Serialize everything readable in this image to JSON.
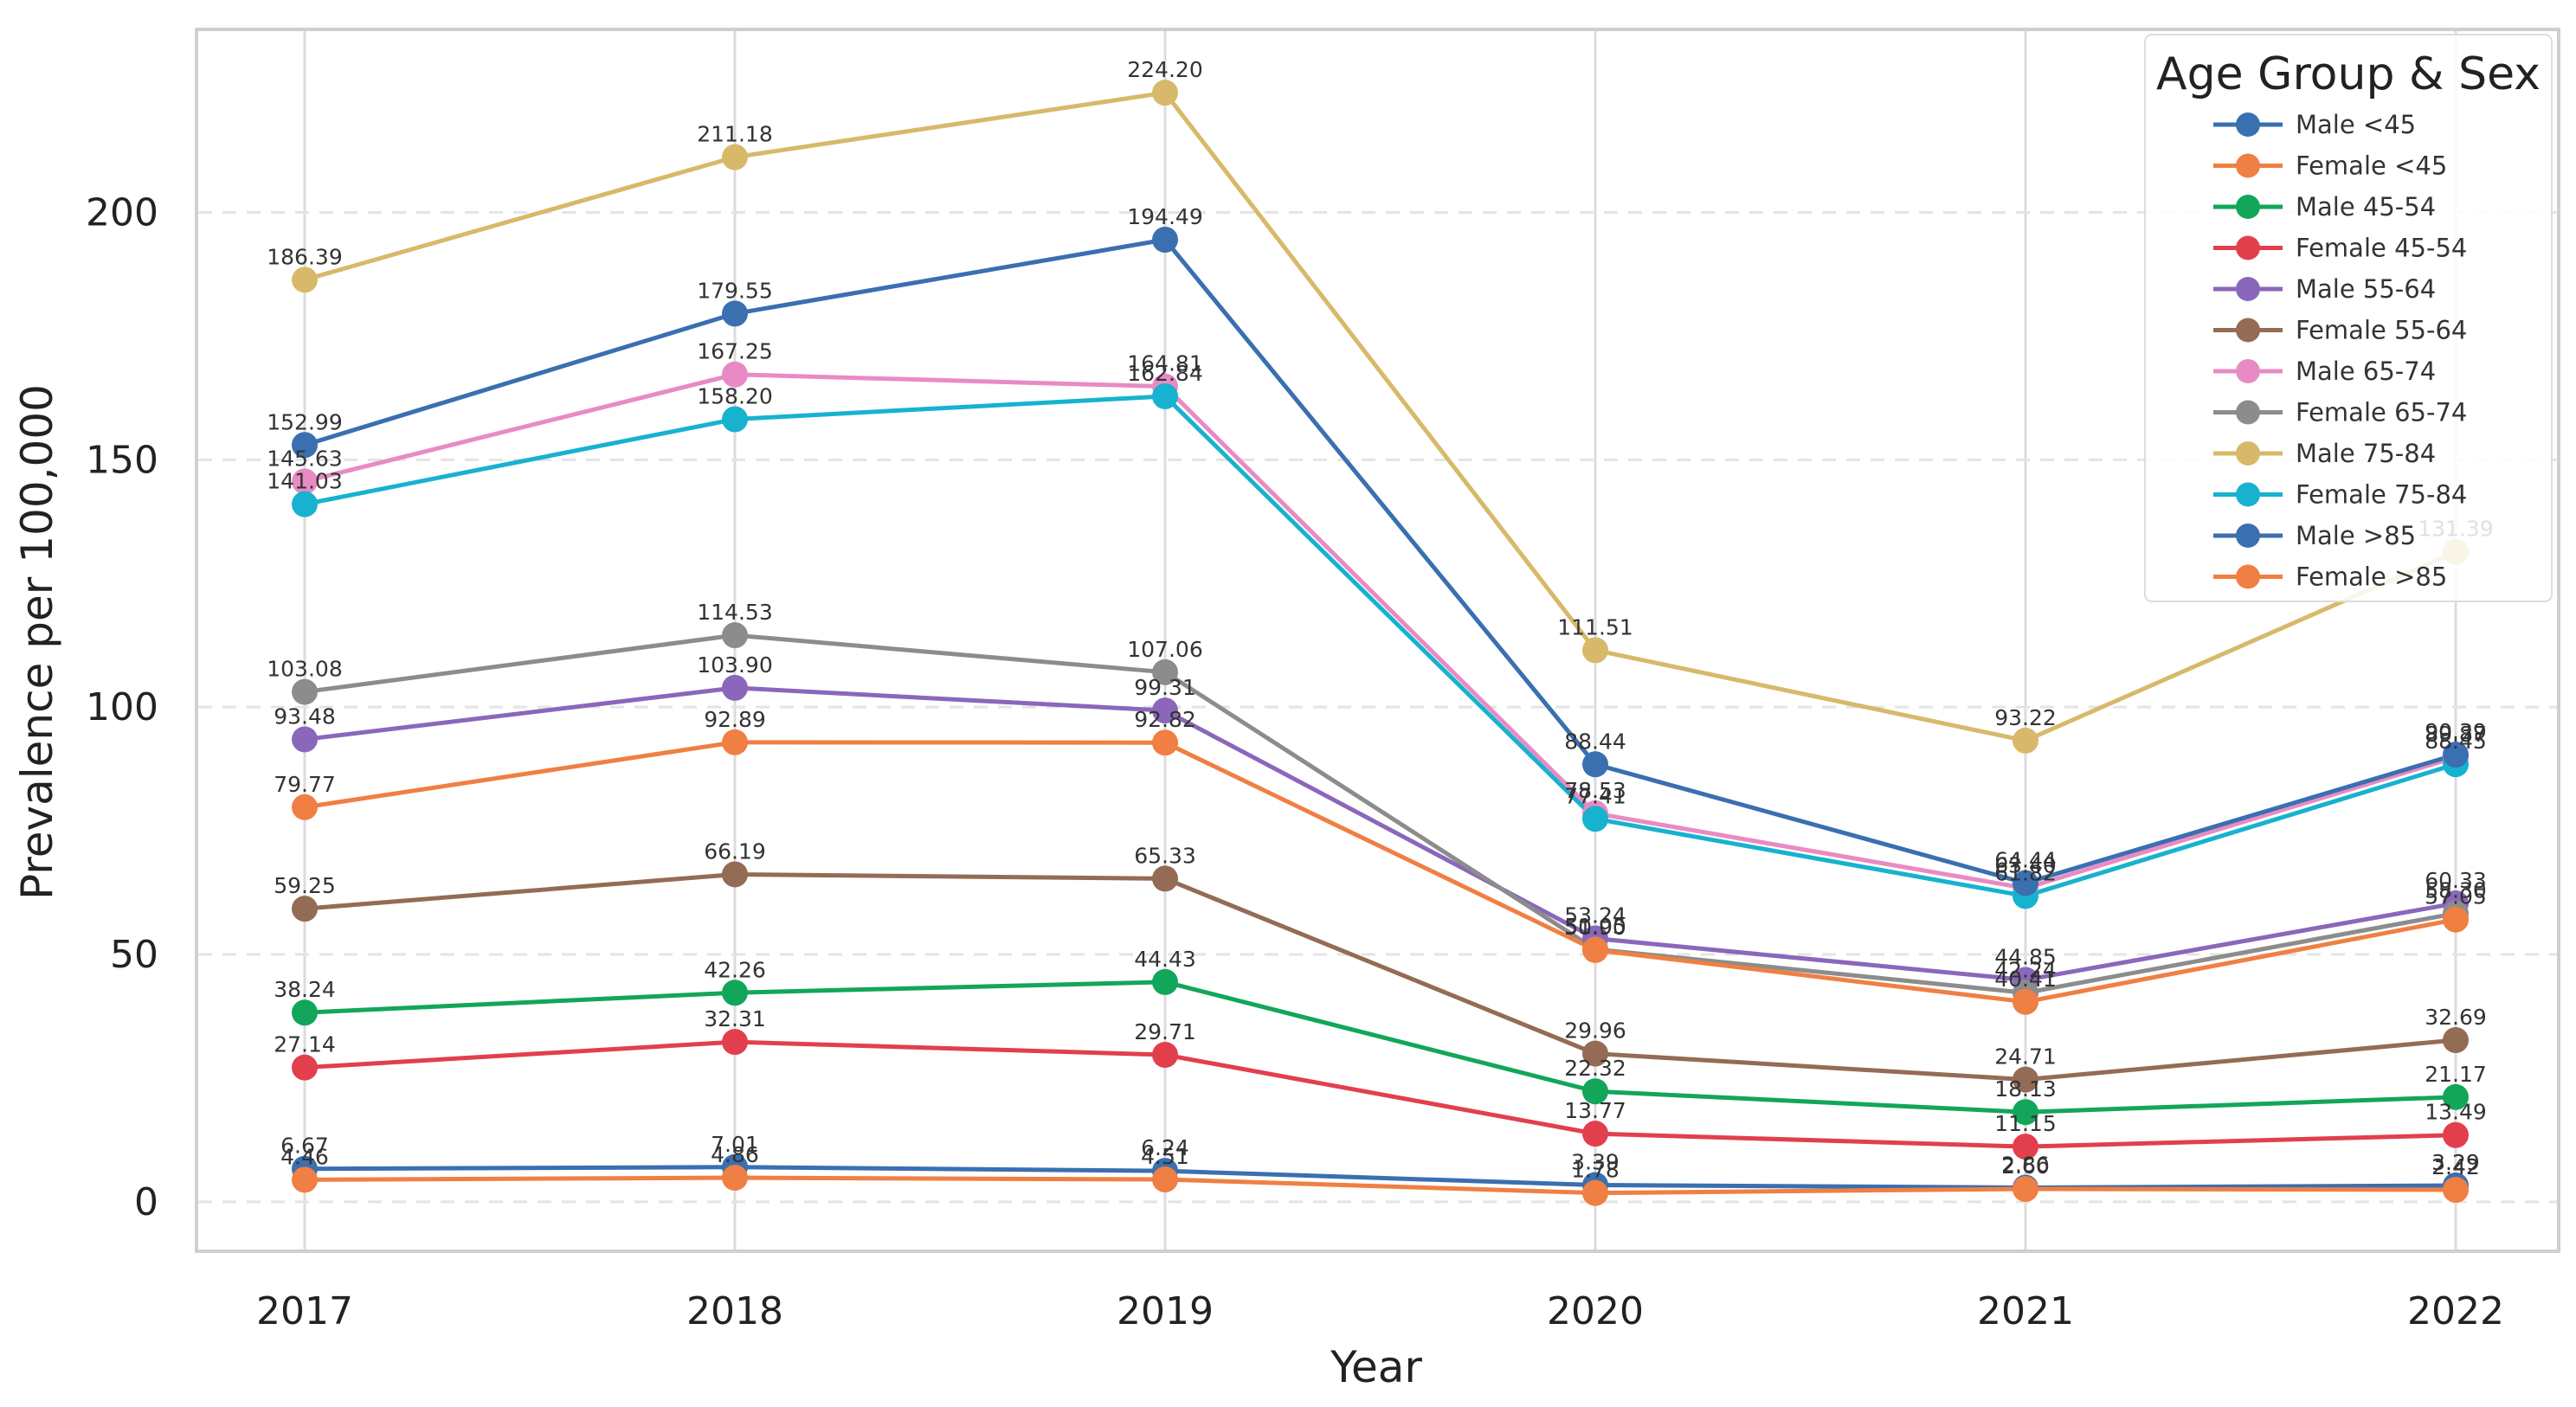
{
  "chart_data": {
    "type": "line",
    "title": "",
    "xlabel": "Year",
    "ylabel": "Prevalence per 100,000",
    "x": [
      "2017",
      "2018",
      "2019",
      "2020",
      "2021",
      "2022"
    ],
    "yticks": [
      "0",
      "50",
      "100",
      "150",
      "200"
    ],
    "ylim": [
      -10,
      237
    ],
    "grid": true,
    "legend": {
      "title": "Age Group & Sex",
      "position": "top-right"
    },
    "series": [
      {
        "name": "Male <45",
        "color": "#3a6fb0",
        "values": [
          6.67,
          7.01,
          6.24,
          3.39,
          2.86,
          3.29
        ],
        "labels": [
          "6.67",
          "7.01",
          "6.24",
          "3.39",
          "2.86",
          "3.29"
        ]
      },
      {
        "name": "Female <45",
        "color": "#f07f43",
        "values": [
          4.46,
          4.86,
          4.51,
          1.78,
          2.6,
          2.42
        ],
        "labels": [
          "4.46",
          "4.86",
          "4.51",
          "1.78",
          "2.60",
          "2.42"
        ]
      },
      {
        "name": "Male 45-54",
        "color": "#12a65a",
        "values": [
          38.24,
          42.26,
          44.43,
          22.32,
          18.13,
          21.17
        ],
        "labels": [
          "38.24",
          "42.26",
          "44.43",
          "22.32",
          "18.13",
          "21.17"
        ]
      },
      {
        "name": "Female 45-54",
        "color": "#e23f4d",
        "values": [
          27.14,
          32.31,
          29.71,
          13.77,
          11.15,
          13.49
        ],
        "labels": [
          "27.14",
          "32.31",
          "29.71",
          "13.77",
          "11.15",
          "13.49"
        ]
      },
      {
        "name": "Male 55-64",
        "color": "#8a67bb",
        "values": [
          93.48,
          103.9,
          99.31,
          53.24,
          44.85,
          60.33
        ],
        "labels": [
          "93.48",
          "103.90",
          "99.31",
          "53.24",
          "44.85",
          "60.33"
        ]
      },
      {
        "name": "Female 55-64",
        "color": "#946b54",
        "values": [
          59.25,
          66.19,
          65.33,
          29.96,
          24.71,
          32.69
        ],
        "labels": [
          "59.25",
          "66.19",
          "65.33",
          "29.96",
          "24.71",
          "32.69"
        ]
      },
      {
        "name": "Male 65-74",
        "color": "#e88bc4",
        "values": [
          145.63,
          167.25,
          164.81,
          78.53,
          63.4,
          89.87
        ],
        "labels": [
          "145.63",
          "167.25",
          "164.81",
          "78.53",
          "63.40",
          "89.87"
        ]
      },
      {
        "name": "Female 65-74",
        "color": "#8c8c8c",
        "values": [
          103.08,
          114.53,
          107.06,
          51.05,
          42.24,
          58.3
        ],
        "labels": [
          "103.08",
          "114.53",
          "107.06",
          "51.05",
          "42.24",
          "58.30"
        ]
      },
      {
        "name": "Male 75-84",
        "color": "#d8b96a",
        "values": [
          186.39,
          211.18,
          224.2,
          111.51,
          93.22,
          131.39
        ],
        "labels": [
          "186.39",
          "211.18",
          "224.20",
          "111.51",
          "93.22",
          "131.39"
        ]
      },
      {
        "name": "Female 75-84",
        "color": "#17b2cf",
        "values": [
          141.03,
          158.2,
          162.84,
          77.41,
          61.82,
          88.45
        ],
        "labels": [
          "141.03",
          "158.20",
          "162.84",
          "77.41",
          "61.82",
          "88.45"
        ]
      },
      {
        "name": "Male >85",
        "color": "#3a6fb0",
        "values": [
          152.99,
          179.55,
          194.49,
          88.44,
          64.44,
          90.39
        ],
        "labels": [
          "152.99",
          "179.55",
          "194.49",
          "88.44",
          "64.44",
          "90.39"
        ]
      },
      {
        "name": "Female >85",
        "color": "#f07f43",
        "values": [
          79.77,
          92.89,
          92.82,
          50.9,
          40.41,
          57.05
        ],
        "labels": [
          "79.77",
          "92.89",
          "92.82",
          "50.90",
          "40.41",
          "57.05"
        ]
      }
    ]
  }
}
